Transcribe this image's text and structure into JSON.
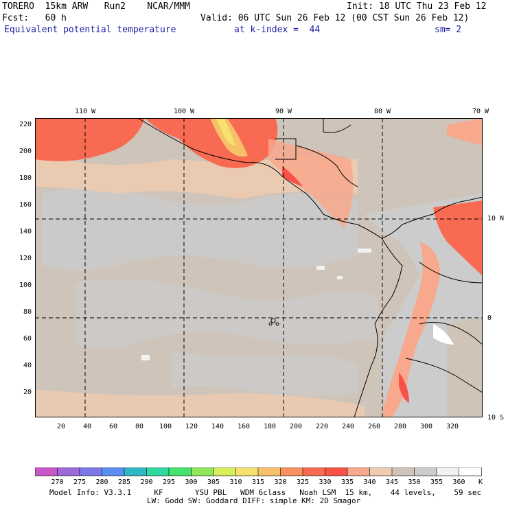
{
  "header": {
    "model": "TORERO  15km ARW   Run2    NCAR/MMM",
    "init": "Init: 18 UTC Thu 23 Feb 12",
    "fcst": "Fcst:   60 h",
    "valid": "Valid: 06 UTC Sun 26 Feb 12 (00 CST Sun 26 Feb 12)",
    "field": "Equivalent potential temperature",
    "level": "at k-index =  44",
    "smooth": "sm= 2"
  },
  "top_ticks": [
    "110 W",
    "100 W",
    "90 W",
    "80 W",
    "70 W"
  ],
  "right_ticks": [
    "10 N",
    "0",
    "10 S"
  ],
  "y_ticks": [
    "220",
    "200",
    "180",
    "160",
    "140",
    "120",
    "100",
    "80",
    "60",
    "40",
    "20"
  ],
  "x_ticks": [
    "20",
    "40",
    "60",
    "80",
    "100",
    "120",
    "140",
    "160",
    "180",
    "200",
    "220",
    "240",
    "260",
    "280",
    "300",
    "320"
  ],
  "colorbar": {
    "labels": [
      "270",
      "275",
      "280",
      "285",
      "290",
      "295",
      "300",
      "305",
      "310",
      "315",
      "320",
      "325",
      "330",
      "335",
      "340",
      "345",
      "350",
      "355",
      "360"
    ],
    "unit": "K",
    "colors": [
      "#c856c8",
      "#9c6ad6",
      "#7b78e6",
      "#5a8ef0",
      "#2fb8c4",
      "#2ed8a0",
      "#44e46c",
      "#8ee85a",
      "#d8ee5a",
      "#f8e070",
      "#f8c068",
      "#f89060",
      "#f86a52",
      "#f85248",
      "#f8a88c",
      "#f0ccb0",
      "#d0c4b8",
      "#cccccc",
      "#f2f2f2",
      "#ffffff"
    ]
  },
  "footer": {
    "line1": "Model Info: V3.3.1     KF       YSU PBL   WDM 6class   Noah LSM  15 km,    44 levels,    59 sec",
    "line2": "LW: Godd SW: Goddard DIFF: simple KM: 2D Smagor"
  }
}
